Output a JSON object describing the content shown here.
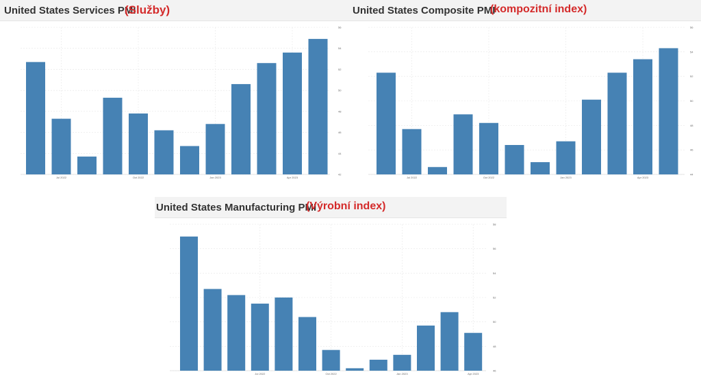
{
  "colors": {
    "bar": "#4682b4",
    "subtitle": "#d42a2a",
    "grid": "#e6e6e6"
  },
  "chart_data": [
    {
      "type": "bar",
      "title": "United States Services PMI",
      "annotation": "(Služby)",
      "x_tick_labels": [
        "Jul 2022",
        "Oct 2022",
        "Jan 2023",
        "Apr 2023"
      ],
      "values": [
        52.7,
        47.3,
        43.7,
        49.3,
        47.8,
        46.2,
        44.7,
        46.8,
        50.6,
        52.6,
        53.6,
        54.9
      ],
      "ylim": [
        42,
        56
      ],
      "y_ticks": [
        42,
        44,
        46,
        48,
        50,
        52,
        54,
        56
      ],
      "grid": true
    },
    {
      "type": "bar",
      "title": "United States Composite PMI",
      "annotation": "(kompozitní index)",
      "x_tick_labels": [
        "Jul 2022",
        "Oct 2022",
        "Jan 2023",
        "Apr 2023"
      ],
      "values": [
        52.3,
        47.7,
        44.6,
        48.9,
        48.2,
        46.4,
        45.0,
        46.7,
        50.1,
        52.3,
        53.4,
        54.3
      ],
      "ylim": [
        44,
        56
      ],
      "y_ticks": [
        44,
        46,
        48,
        50,
        52,
        54,
        56
      ],
      "grid": true
    },
    {
      "type": "bar",
      "title": "United States Manufacturing PMI",
      "annotation": "(Výrobní index)",
      "x_tick_labels": [
        "Jul 2022",
        "Oct 2022",
        "Jan 2023",
        "Apr 2023"
      ],
      "values": [
        57.0,
        52.7,
        52.2,
        51.5,
        52.0,
        50.4,
        47.7,
        46.2,
        46.9,
        47.3,
        49.7,
        50.8,
        49.1
      ],
      "ylim": [
        46,
        58
      ],
      "y_ticks": [
        46,
        48,
        50,
        52,
        54,
        56,
        58
      ],
      "grid": true
    }
  ]
}
